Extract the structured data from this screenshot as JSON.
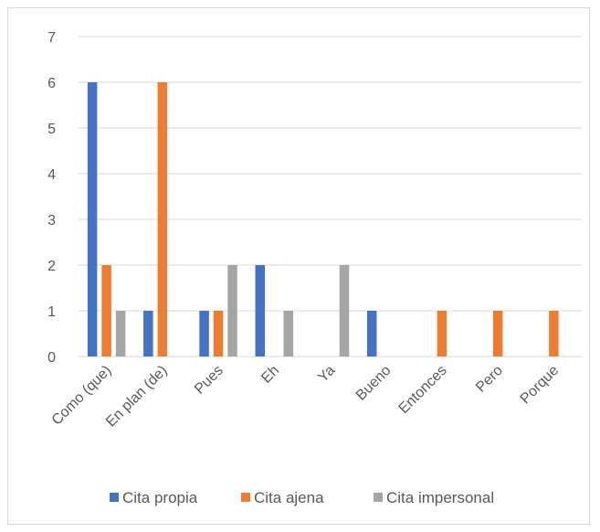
{
  "chart_data": {
    "type": "bar",
    "categories": [
      "Como (que)",
      "En plan (de)",
      "Pues",
      "Eh",
      "Ya",
      "Bueno",
      "Entonces",
      "Pero",
      "Porque"
    ],
    "series": [
      {
        "name": "Cita propia",
        "color": "#4472c4",
        "values": [
          6,
          1,
          1,
          2,
          0,
          1,
          0,
          0,
          0
        ]
      },
      {
        "name": "Cita ajena",
        "color": "#ed7d31",
        "values": [
          2,
          6,
          1,
          0,
          0,
          0,
          1,
          1,
          1
        ]
      },
      {
        "name": "Cita impersonal",
        "color": "#a5a5a5",
        "values": [
          1,
          0,
          2,
          1,
          2,
          0,
          0,
          0,
          0
        ]
      }
    ],
    "yticks": [
      "0",
      "1",
      "2",
      "3",
      "4",
      "5",
      "6",
      "7"
    ],
    "ylim": [
      0,
      7
    ],
    "grid": true,
    "legend_position": "bottom",
    "gridline_color": "#d9d9d9"
  }
}
